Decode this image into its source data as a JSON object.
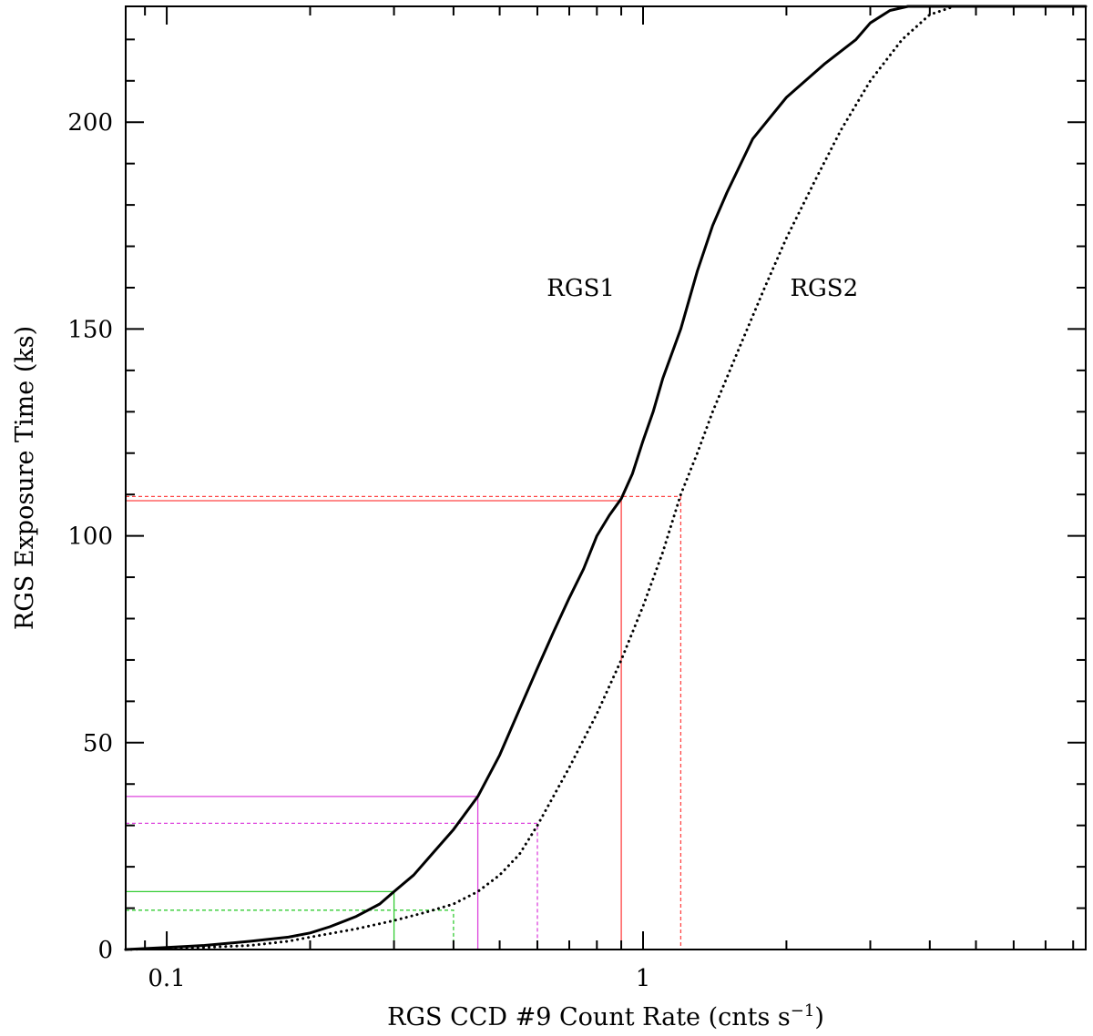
{
  "chart_data": {
    "type": "line",
    "xscale": "log",
    "xlim": [
      0.082,
      8.5
    ],
    "ylim": [
      0,
      228
    ],
    "xlabel_main": "RGS CCD #9 Count Rate (cnts s",
    "xlabel_exp": "−1",
    "xlabel_close": ")",
    "ylabel": "RGS Exposure Time (ks)",
    "x_ticks": [
      {
        "value": 0.1,
        "label": "0.1"
      },
      {
        "value": 1,
        "label": "1"
      }
    ],
    "y_ticks": [
      {
        "value": 0,
        "label": "0"
      },
      {
        "value": 50,
        "label": "50"
      },
      {
        "value": 100,
        "label": "100"
      },
      {
        "value": 150,
        "label": "150"
      },
      {
        "value": 200,
        "label": "200"
      }
    ],
    "series": [
      {
        "name": "RGS1",
        "style": "solid",
        "color": "#000000",
        "points": [
          [
            0.082,
            0
          ],
          [
            0.1,
            0.5
          ],
          [
            0.12,
            1
          ],
          [
            0.15,
            2
          ],
          [
            0.18,
            3
          ],
          [
            0.2,
            4
          ],
          [
            0.22,
            5.5
          ],
          [
            0.25,
            8
          ],
          [
            0.28,
            11
          ],
          [
            0.3,
            14
          ],
          [
            0.33,
            18
          ],
          [
            0.36,
            23
          ],
          [
            0.4,
            29
          ],
          [
            0.45,
            37
          ],
          [
            0.5,
            47
          ],
          [
            0.55,
            58
          ],
          [
            0.6,
            68
          ],
          [
            0.65,
            77
          ],
          [
            0.7,
            85
          ],
          [
            0.75,
            92
          ],
          [
            0.8,
            100
          ],
          [
            0.85,
            105
          ],
          [
            0.9,
            109
          ],
          [
            0.95,
            115
          ],
          [
            1.0,
            123
          ],
          [
            1.05,
            130
          ],
          [
            1.1,
            138
          ],
          [
            1.2,
            150
          ],
          [
            1.3,
            164
          ],
          [
            1.4,
            175
          ],
          [
            1.5,
            183
          ],
          [
            1.7,
            196
          ],
          [
            2.0,
            206
          ],
          [
            2.4,
            214
          ],
          [
            2.8,
            220
          ],
          [
            3.0,
            224
          ],
          [
            3.3,
            227
          ],
          [
            3.6,
            228
          ],
          [
            8.5,
            228
          ]
        ]
      },
      {
        "name": "RGS2",
        "style": "dotted",
        "color": "#000000",
        "points": [
          [
            0.082,
            0
          ],
          [
            0.12,
            0.5
          ],
          [
            0.15,
            1
          ],
          [
            0.18,
            2
          ],
          [
            0.2,
            3
          ],
          [
            0.25,
            5
          ],
          [
            0.3,
            7
          ],
          [
            0.35,
            9
          ],
          [
            0.4,
            11
          ],
          [
            0.45,
            14
          ],
          [
            0.5,
            18
          ],
          [
            0.55,
            23
          ],
          [
            0.6,
            30
          ],
          [
            0.7,
            44
          ],
          [
            0.8,
            57
          ],
          [
            0.9,
            70
          ],
          [
            1.0,
            83
          ],
          [
            1.1,
            96
          ],
          [
            1.2,
            110
          ],
          [
            1.3,
            120
          ],
          [
            1.4,
            130
          ],
          [
            1.6,
            146
          ],
          [
            1.8,
            160
          ],
          [
            2.0,
            172
          ],
          [
            2.3,
            186
          ],
          [
            2.6,
            198
          ],
          [
            3.0,
            210
          ],
          [
            3.5,
            220
          ],
          [
            4.0,
            226
          ],
          [
            4.5,
            228
          ],
          [
            8.5,
            228
          ]
        ]
      }
    ],
    "markers": [
      {
        "x": 0.3,
        "y": 14,
        "style": "solid",
        "color": "#33cc33"
      },
      {
        "x": 0.4,
        "y": 9.5,
        "style": "dashed",
        "color": "#33cc33"
      },
      {
        "x": 0.45,
        "y": 37,
        "style": "solid",
        "color": "#dd44dd"
      },
      {
        "x": 0.6,
        "y": 30.5,
        "style": "dashed",
        "color": "#dd44dd"
      },
      {
        "x": 0.9,
        "y": 108.5,
        "style": "solid",
        "color": "#ff4444"
      },
      {
        "x": 1.2,
        "y": 109.5,
        "style": "dashed",
        "color": "#ff4444"
      }
    ],
    "annotations": [
      {
        "text": "RGS1",
        "x": 0.74,
        "y": 158
      },
      {
        "text": "RGS2",
        "x": 2.4,
        "y": 158
      }
    ]
  }
}
